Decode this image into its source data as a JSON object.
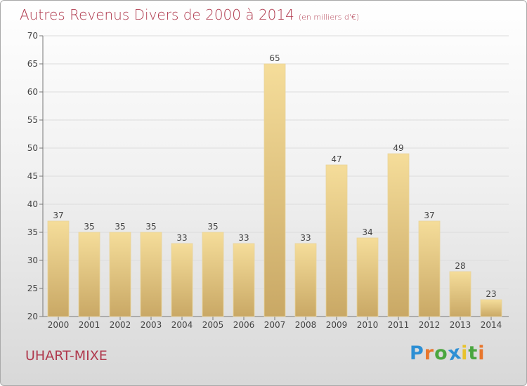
{
  "header": {
    "title": "Autres Revenus Divers de 2000 à 2014",
    "unit": "(en milliers d'€)"
  },
  "footer": {
    "location": "UHART-MIXE"
  },
  "brand": {
    "name": "Proxiti",
    "letters": [
      {
        "char": "P",
        "color": "#2d8fd4"
      },
      {
        "char": "r",
        "color": "#e8762c"
      },
      {
        "char": "o",
        "color": "#4aa63f"
      },
      {
        "char": "x",
        "color": "#2d8fd4"
      },
      {
        "char": "i",
        "color": "#e8c22c"
      },
      {
        "char": "t",
        "color": "#4aa63f"
      },
      {
        "char": "i",
        "color": "#e8762c"
      }
    ]
  },
  "chart_data": {
    "type": "bar",
    "title": "Autres Revenus Divers de 2000 à 2014",
    "subtitle": "(en milliers d'€)",
    "categories": [
      "2000",
      "2001",
      "2002",
      "2003",
      "2004",
      "2005",
      "2006",
      "2007",
      "2008",
      "2009",
      "2010",
      "2011",
      "2012",
      "2013",
      "2014"
    ],
    "values": [
      37,
      35,
      35,
      35,
      33,
      35,
      33,
      65,
      33,
      47,
      34,
      49,
      37,
      28,
      23
    ],
    "ylim": [
      20,
      70
    ],
    "yticks": [
      20,
      25,
      30,
      35,
      40,
      45,
      50,
      55,
      60,
      65,
      70
    ],
    "grid": true,
    "bar_color_top": "#f5dd9a",
    "bar_color_bottom": "#c9a865"
  }
}
